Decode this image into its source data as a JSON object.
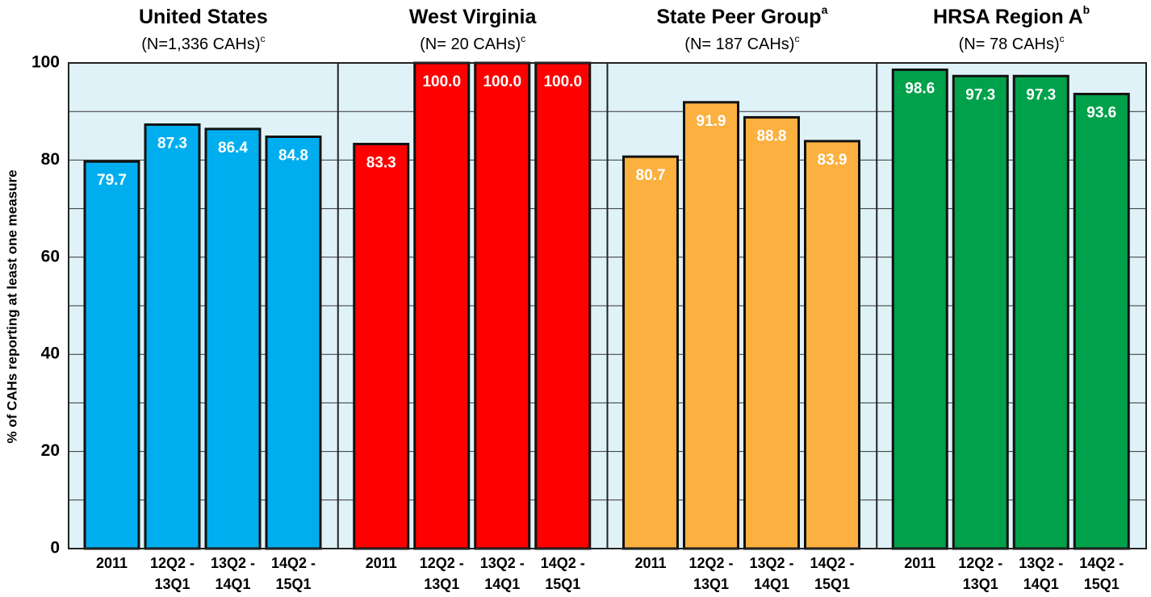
{
  "chart_data": {
    "type": "bar",
    "y_label": "% of CAHs reporting at least one measure",
    "ylim": [
      0,
      100
    ],
    "yticks": [
      0,
      20,
      40,
      60,
      80,
      100
    ],
    "minor_yticks": [
      10,
      30,
      50,
      70,
      90
    ],
    "grid": true,
    "panels": [
      {
        "title": "United States",
        "subtitle": "(N=1,336 CAHs)",
        "subtitle_note": "c",
        "color": "#00aeef",
        "categories": [
          [
            "2011"
          ],
          [
            "12Q2 -",
            "13Q1"
          ],
          [
            "13Q2 -",
            "14Q1"
          ],
          [
            "14Q2 -",
            "15Q1"
          ]
        ],
        "values": [
          79.7,
          87.3,
          86.4,
          84.8
        ],
        "value_labels": [
          "79.7",
          "87.3",
          "86.4",
          "84.8"
        ]
      },
      {
        "title": "West Virginia",
        "subtitle": "(N= 20 CAHs)",
        "subtitle_note": "c",
        "color": "#ff0000",
        "categories": [
          [
            "2011"
          ],
          [
            "12Q2 -",
            "13Q1"
          ],
          [
            "13Q2 -",
            "14Q1"
          ],
          [
            "14Q2 -",
            "15Q1"
          ]
        ],
        "values": [
          83.3,
          100,
          100,
          100
        ],
        "value_labels": [
          "83.3",
          "100.0",
          "100.0",
          "100.0"
        ]
      },
      {
        "title": "State Peer Group",
        "title_note": "a",
        "subtitle": "(N= 187 CAHs)",
        "subtitle_note": "c",
        "color": "#fbb040",
        "categories": [
          [
            "2011"
          ],
          [
            "12Q2 -",
            "13Q1"
          ],
          [
            "13Q2 -",
            "14Q1"
          ],
          [
            "14Q2 -",
            "15Q1"
          ]
        ],
        "values": [
          80.7,
          91.9,
          88.8,
          83.9
        ],
        "value_labels": [
          "80.7",
          "91.9",
          "88.8",
          "83.9"
        ]
      },
      {
        "title": "HRSA Region A",
        "title_note": "b",
        "subtitle": "(N= 78 CAHs)",
        "subtitle_note": "c",
        "color": "#00a14b",
        "categories": [
          [
            "2011"
          ],
          [
            "12Q2 -",
            "13Q1"
          ],
          [
            "13Q2 -",
            "14Q1"
          ],
          [
            "14Q2 -",
            "15Q1"
          ]
        ],
        "values": [
          98.6,
          97.3,
          97.3,
          93.6
        ],
        "value_labels": [
          "98.6",
          "97.3",
          "97.3",
          "93.6"
        ]
      }
    ]
  }
}
